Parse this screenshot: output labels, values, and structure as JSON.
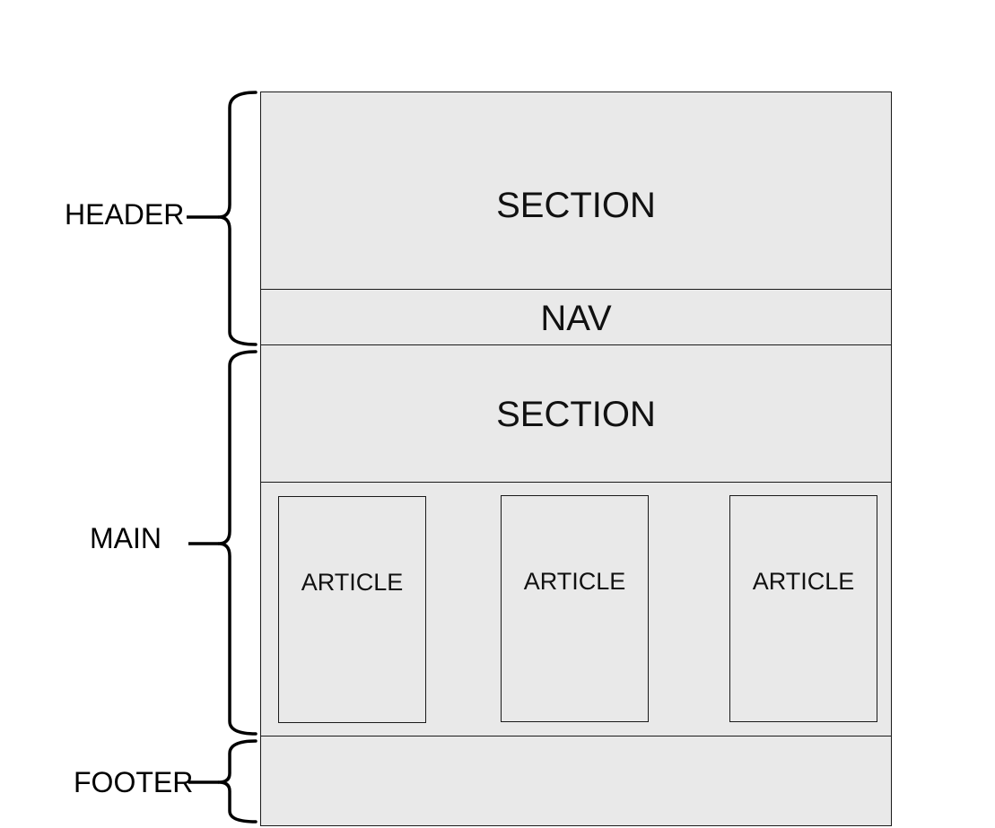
{
  "header": {
    "section_label": "SECTION",
    "nav_label": "NAV",
    "bracket_label": "HEADER"
  },
  "main": {
    "section_label": "SECTION",
    "bracket_label": "MAIN",
    "articles": [
      {
        "label": "ARTICLE"
      },
      {
        "label": "ARTICLE"
      },
      {
        "label": "ARTICLE"
      }
    ]
  },
  "footer": {
    "bracket_label": "FOOTER"
  },
  "colors": {
    "box_fill": "#e9e9e9",
    "stroke": "#1a1a1a",
    "text": "#000000"
  }
}
